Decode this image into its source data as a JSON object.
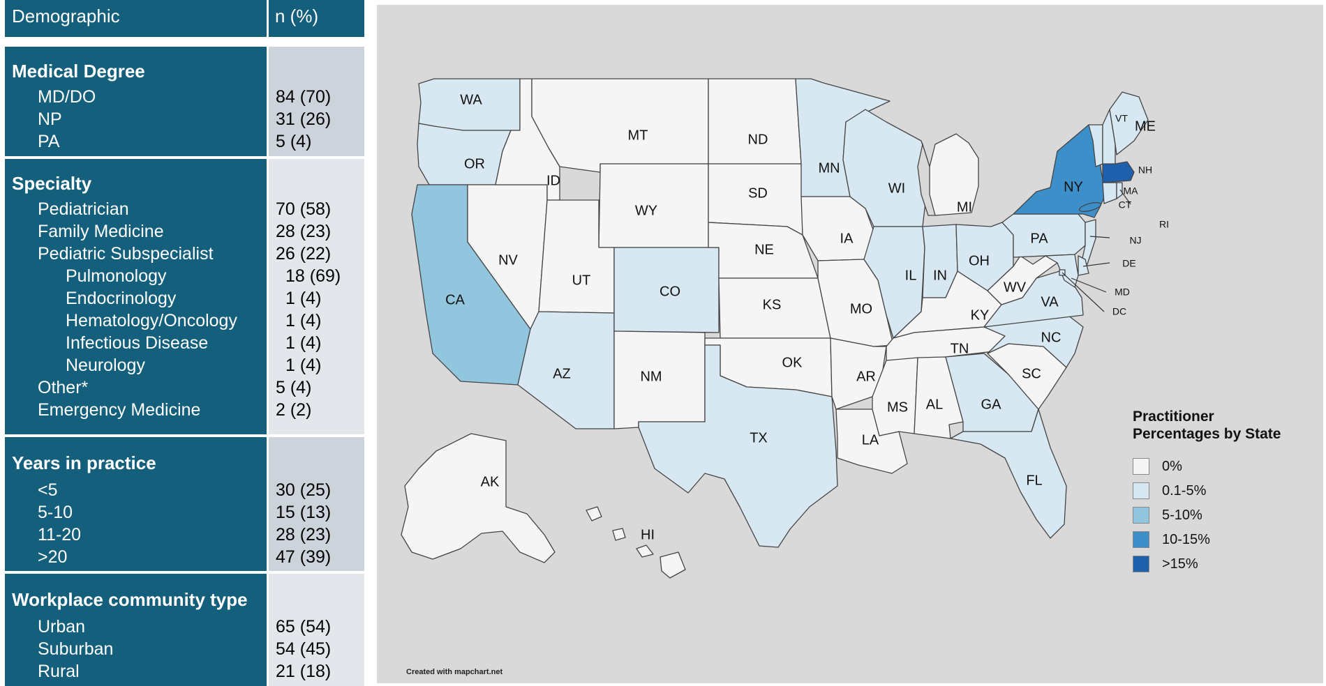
{
  "table": {
    "header": {
      "left": "Demographic",
      "right": "n (%)"
    },
    "sections": [
      {
        "title": "Medical Degree",
        "rows": [
          {
            "label": "MD/DO",
            "value": "84 (70)"
          },
          {
            "label": "NP",
            "value": "31 (26)"
          },
          {
            "label": "PA",
            "value": "5 (4)"
          }
        ]
      },
      {
        "title": "Specialty",
        "rows": [
          {
            "label": "Pediatrician",
            "value": "70 (58)"
          },
          {
            "label": "Family Medicine",
            "value": "28 (23)"
          },
          {
            "label": "Pediatric Subspecialist",
            "value": "26 (22)"
          },
          {
            "label": "Pulmonology",
            "value": "18 (69)"
          },
          {
            "label": "Endocrinology",
            "value": "1 (4)"
          },
          {
            "label": "Hematology/Oncology",
            "value": "1 (4)"
          },
          {
            "label": "Infectious Disease",
            "value": "1 (4)"
          },
          {
            "label": "Neurology",
            "value": "1 (4)"
          },
          {
            "label": "Other*",
            "value": "5 (4)"
          },
          {
            "label": "Emergency Medicine",
            "value": "2 (2)"
          }
        ]
      },
      {
        "title": "Years in practice",
        "rows": [
          {
            "label": "<5",
            "value": "30 (25)"
          },
          {
            "label": "5-10",
            "value": "15 (13)"
          },
          {
            "label": "11-20",
            "value": "28 (23)"
          },
          {
            "label": ">20",
            "value": "47 (39)"
          }
        ]
      },
      {
        "title": "Workplace community type",
        "rows": [
          {
            "label": "Urban",
            "value": "65 (54)"
          },
          {
            "label": "Suburban",
            "value": "54 (45)"
          },
          {
            "label": "Rural",
            "value": "21 (18)"
          }
        ]
      }
    ]
  },
  "map": {
    "legend": {
      "title": "Practitioner Percentages by State",
      "items": [
        {
          "label": "0%",
          "color": "#f5f5f5"
        },
        {
          "label": "0.1-5%",
          "color": "#d7e8f2"
        },
        {
          "label": "5-10%",
          "color": "#92c5de"
        },
        {
          "label": "10-15%",
          "color": "#3d8fc9"
        },
        {
          "label": ">15%",
          "color": "#1f60ac"
        }
      ]
    },
    "credit": "Created with mapchart.net",
    "states": [
      {
        "abbr": "WA",
        "bin": 1
      },
      {
        "abbr": "OR",
        "bin": 1
      },
      {
        "abbr": "CA",
        "bin": 2
      },
      {
        "abbr": "NV",
        "bin": 0
      },
      {
        "abbr": "ID",
        "bin": 0
      },
      {
        "abbr": "MT",
        "bin": 0
      },
      {
        "abbr": "WY",
        "bin": 0
      },
      {
        "abbr": "UT",
        "bin": 0
      },
      {
        "abbr": "AZ",
        "bin": 1
      },
      {
        "abbr": "CO",
        "bin": 1
      },
      {
        "abbr": "NM",
        "bin": 0
      },
      {
        "abbr": "ND",
        "bin": 0
      },
      {
        "abbr": "SD",
        "bin": 0
      },
      {
        "abbr": "NE",
        "bin": 0
      },
      {
        "abbr": "KS",
        "bin": 0
      },
      {
        "abbr": "OK",
        "bin": 0
      },
      {
        "abbr": "TX",
        "bin": 1
      },
      {
        "abbr": "MN",
        "bin": 1
      },
      {
        "abbr": "IA",
        "bin": 0
      },
      {
        "abbr": "MO",
        "bin": 0
      },
      {
        "abbr": "AR",
        "bin": 0
      },
      {
        "abbr": "LA",
        "bin": 0
      },
      {
        "abbr": "WI",
        "bin": 1
      },
      {
        "abbr": "IL",
        "bin": 1
      },
      {
        "abbr": "MI",
        "bin": 0
      },
      {
        "abbr": "IN",
        "bin": 1
      },
      {
        "abbr": "OH",
        "bin": 1
      },
      {
        "abbr": "KY",
        "bin": 0
      },
      {
        "abbr": "TN",
        "bin": 0
      },
      {
        "abbr": "MS",
        "bin": 0
      },
      {
        "abbr": "AL",
        "bin": 0
      },
      {
        "abbr": "GA",
        "bin": 1
      },
      {
        "abbr": "FL",
        "bin": 1
      },
      {
        "abbr": "SC",
        "bin": 0
      },
      {
        "abbr": "NC",
        "bin": 1
      },
      {
        "abbr": "VA",
        "bin": 1
      },
      {
        "abbr": "WV",
        "bin": 0
      },
      {
        "abbr": "PA",
        "bin": 1
      },
      {
        "abbr": "NY",
        "bin": 3
      },
      {
        "abbr": "VT",
        "bin": 1
      },
      {
        "abbr": "NH",
        "bin": 1
      },
      {
        "abbr": "ME",
        "bin": 1
      },
      {
        "abbr": "MA",
        "bin": 4
      },
      {
        "abbr": "CT",
        "bin": 1
      },
      {
        "abbr": "RI",
        "bin": 1
      },
      {
        "abbr": "NJ",
        "bin": 1
      },
      {
        "abbr": "DE",
        "bin": 1
      },
      {
        "abbr": "MD",
        "bin": 1
      },
      {
        "abbr": "DC",
        "bin": 1
      },
      {
        "abbr": "AK",
        "bin": 0
      },
      {
        "abbr": "HI",
        "bin": 0
      }
    ]
  }
}
